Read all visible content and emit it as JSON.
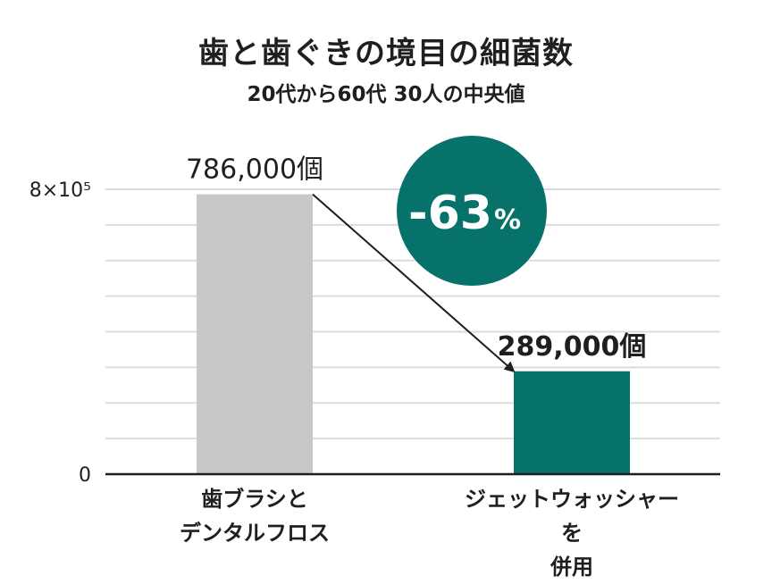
{
  "colors": {
    "bar_default": "#c8c8c8",
    "bar_highlight": "#06726a",
    "grid": "#dcdcdc",
    "axis": "#1f1f1f"
  },
  "chart_data": {
    "type": "bar",
    "title": "歯と歯ぐきの境目の細菌数",
    "subtitle": "20代から60代 30人の中央値",
    "categories": [
      [
        "歯ブラシと",
        "デンタルフロス"
      ],
      [
        "ジェットウォッシャーを",
        "併用"
      ]
    ],
    "values": [
      786000,
      289000
    ],
    "data_labels": [
      "786,000個",
      "289,000個"
    ],
    "ylim": [
      0,
      800000
    ],
    "y_ticks": [
      {
        "value": 0,
        "label": "0"
      },
      {
        "value": 800000,
        "label": "8×10⁵"
      }
    ],
    "grid": true,
    "grid_step": 100000,
    "annotation": {
      "main": "-63",
      "suffix": "%"
    }
  }
}
